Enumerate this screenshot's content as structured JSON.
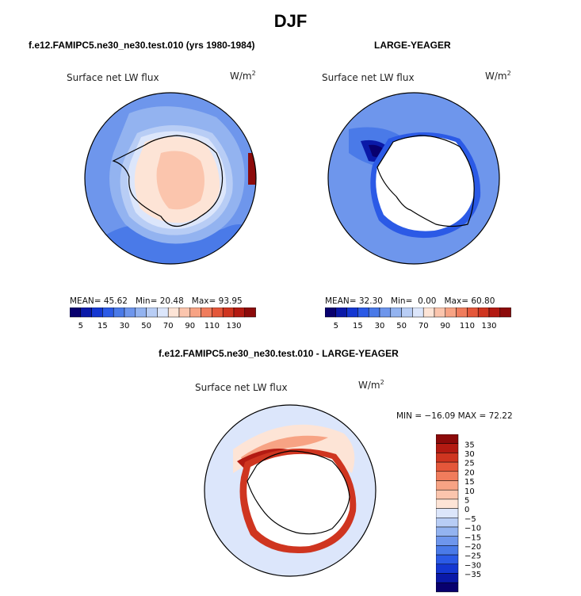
{
  "season_title": "DJF",
  "colormap": {
    "abs": [
      "#08006e",
      "#0a19a8",
      "#1437d2",
      "#2b5ae6",
      "#4a7ae8",
      "#6e96ec",
      "#93b3f0",
      "#b8cdf5",
      "#dce6fb",
      "#fde4d6",
      "#fbc5ad",
      "#f7a384",
      "#f07c5c",
      "#e4573a",
      "#cf3520",
      "#b31a12",
      "#8c0a0a"
    ],
    "abs_labels": [
      "5",
      "15",
      "30",
      "50",
      "70",
      "90",
      "110",
      "130"
    ],
    "diff": [
      "#08006e",
      "#0a19a8",
      "#1437d2",
      "#2b5ae6",
      "#4a7ae8",
      "#6e96ec",
      "#93b3f0",
      "#b8cdf5",
      "#dce6fb",
      "#fde4d6",
      "#fbc5ad",
      "#f7a384",
      "#f07c5c",
      "#e4573a",
      "#cf3520",
      "#b31a12",
      "#8c0a0a"
    ],
    "diff_labels": [
      "35",
      "30",
      "25",
      "20",
      "15",
      "10",
      "5",
      "0",
      "−5",
      "−10",
      "−15",
      "−20",
      "−25",
      "−30",
      "−35"
    ]
  },
  "panels": [
    {
      "title": "f.e12.FAMIPC5.ne30_ne30.test.010 (yrs 1980-1984)",
      "variable": "Surface net LW flux",
      "units": "W/m",
      "units_sup": "2",
      "mean_label": "MEAN=",
      "mean": "45.62",
      "min_label": "Min=",
      "min": "20.48",
      "max_label": "Max=",
      "max": "93.95"
    },
    {
      "title": "LARGE-YEAGER",
      "variable": "Surface net LW flux",
      "units": "W/m",
      "units_sup": "2",
      "mean_label": "MEAN=",
      "mean": "32.30",
      "min_label": "Min=",
      "min": "0.00",
      "max_label": "Max=",
      "max": "60.80"
    },
    {
      "title": "f.e12.FAMIPC5.ne30_ne30.test.010 - LARGE-YEAGER",
      "variable": "Surface net LW flux",
      "units": "W/m",
      "units_sup": "2",
      "minmax": "MIN = −16.09 MAX =  72.22"
    }
  ]
}
